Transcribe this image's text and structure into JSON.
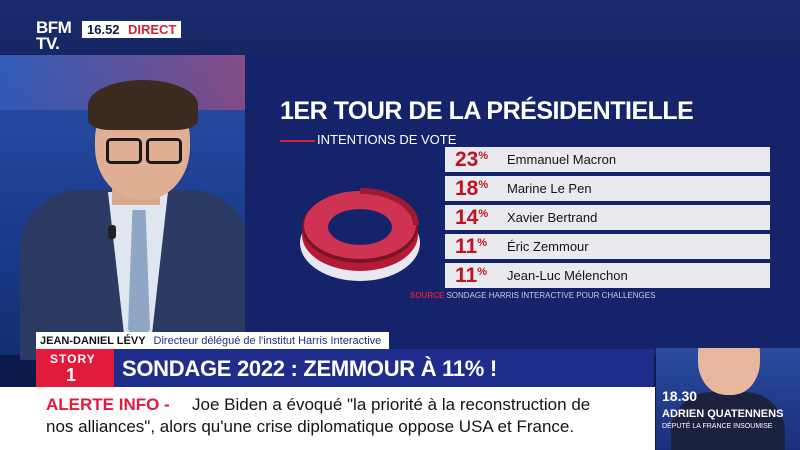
{
  "channel": {
    "logo_line1": "BFM",
    "logo_line2": "TV.",
    "time": "16.52",
    "live_label": "DIRECT"
  },
  "graphic": {
    "title": "1ER TOUR DE LA PRÉSIDENTIELLE",
    "subtitle": "INTENTIONS DE VOTE",
    "source_label": "SOURCE",
    "source_text": "SONDAGE HARRIS INTERACTIVE POUR CHALLENGES"
  },
  "chart_data": {
    "type": "table",
    "title": "1ER TOUR DE LA PRÉSIDENTIELLE",
    "subtitle": "INTENTIONS DE VOTE",
    "unit": "%",
    "categories": [
      "Emmanuel Macron",
      "Marine Le Pen",
      "Xavier Bertrand",
      "Éric Zemmour",
      "Jean-Luc Mélenchon"
    ],
    "values": [
      23,
      18,
      14,
      11,
      11
    ],
    "colors": {
      "accent": "#c1121f",
      "row_bg": "#e9eaf0"
    }
  },
  "lower_third": {
    "guest_name": "JEAN-DANIEL LÉVY",
    "guest_title": "Directeur délégué de l'institut Harris Interactive",
    "story_label": "STORY",
    "story_number": "1",
    "headline": "SONDAGE 2022 : ZEMMOUR À 11% !"
  },
  "ticker": {
    "label": "ALERTE INFO -",
    "line1": "Joe Biden a évoqué \"la priorité à la reconstruction de",
    "line2": "nos alliances\", alors qu'une crise diplomatique oppose USA et France."
  },
  "next_program": {
    "time": "18.30",
    "guest": "ADRIEN QUATENNENS",
    "role": "DÉPUTÉ LA FRANCE INSOUMISE"
  },
  "colors": {
    "brand_red": "#e21b3c",
    "brand_blue": "#1e2c8c"
  }
}
